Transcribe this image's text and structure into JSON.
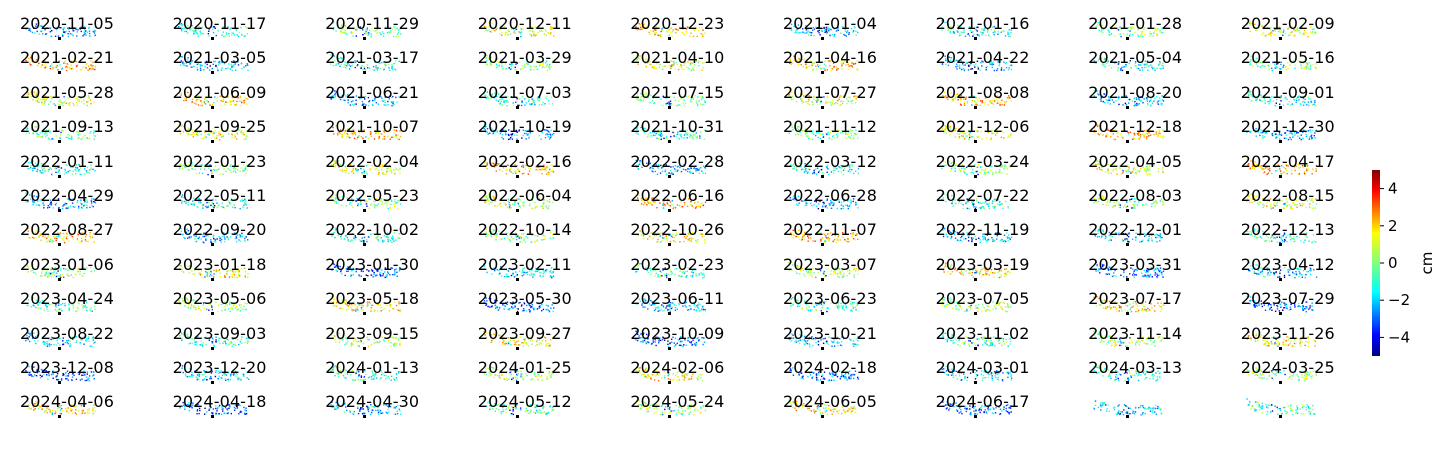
{
  "chart_data": {
    "type": "heatmap",
    "layout": "small-multiples grid of displacement maps",
    "columns": 9,
    "panel_titles": [
      "2020-11-05",
      "2020-11-17",
      "2020-11-29",
      "2020-12-11",
      "2020-12-23",
      "2021-01-04",
      "2021-01-16",
      "2021-01-28",
      "2021-02-09",
      "2021-02-21",
      "2021-03-05",
      "2021-03-17",
      "2021-03-29",
      "2021-04-10",
      "2021-04-16",
      "2021-04-22",
      "2021-05-04",
      "2021-05-16",
      "2021-05-28",
      "2021-06-09",
      "2021-06-21",
      "2021-07-03",
      "2021-07-15",
      "2021-07-27",
      "2021-08-08",
      "2021-08-20",
      "2021-09-01",
      "2021-09-13",
      "2021-09-25",
      "2021-10-07",
      "2021-10-19",
      "2021-10-31",
      "2021-11-12",
      "2021-12-06",
      "2021-12-18",
      "2021-12-30",
      "2022-01-11",
      "2022-01-23",
      "2022-02-04",
      "2022-02-16",
      "2022-02-28",
      "2022-03-12",
      "2022-03-24",
      "2022-04-05",
      "2022-04-17",
      "2022-04-29",
      "2022-05-11",
      "2022-05-23",
      "2022-06-04",
      "2022-06-16",
      "2022-06-28",
      "2022-07-22",
      "2022-08-03",
      "2022-08-15",
      "2022-08-27",
      "2022-09-20",
      "2022-10-02",
      "2022-10-14",
      "2022-10-26",
      "2022-11-07",
      "2022-11-19",
      "2022-12-01",
      "2022-12-13",
      "2023-01-06",
      "2023-01-18",
      "2023-01-30",
      "2023-02-11",
      "2023-02-23",
      "2023-03-07",
      "2023-03-19",
      "2023-03-31",
      "2023-04-12",
      "2023-04-24",
      "2023-05-06",
      "2023-05-18",
      "2023-05-30",
      "2023-06-11",
      "2023-06-23",
      "2023-07-05",
      "2023-07-17",
      "2023-07-29",
      "2023-08-22",
      "2023-09-03",
      "2023-09-15",
      "2023-09-27",
      "2023-10-09",
      "2023-10-21",
      "2023-11-02",
      "2023-11-14",
      "2023-11-26",
      "2023-12-08",
      "2023-12-20",
      "2024-01-13",
      "2024-01-25",
      "2024-02-06",
      "2024-02-18",
      "2024-03-01",
      "2024-03-13",
      "2024-03-25",
      "2024-04-06",
      "2024-04-18",
      "2024-04-30",
      "2024-05-12",
      "2024-05-24",
      "2024-06-05",
      "2024-06-17"
    ],
    "colorbar": {
      "label": "cm",
      "colormap": "jet",
      "range": [
        -5,
        5
      ],
      "ticks": [
        4,
        2,
        0,
        -2,
        -4
      ],
      "tick_labels": [
        "4",
        "2",
        "0",
        "−2",
        "−4"
      ]
    },
    "reference_marker": "small black square below each map"
  }
}
